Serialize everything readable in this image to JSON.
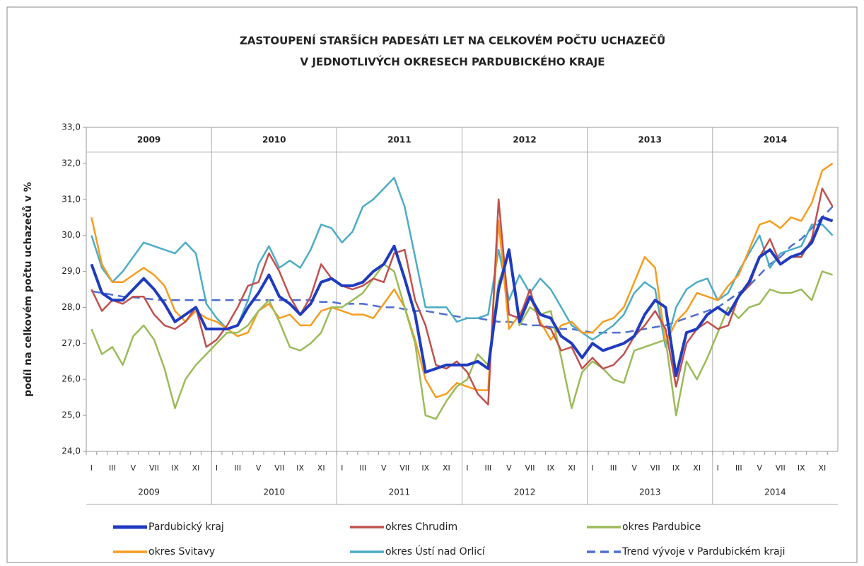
{
  "chart_data": {
    "type": "line",
    "title": [
      "ZASTOUPENÍ  STARŠÍCH PADESÁTI LET NA  CELKOVÉM  POČTU  UCHAZEČŮ",
      "V JEDNOTLIVÝCH  OKRESECH  PARDUBICKÉHO  KRAJE"
    ],
    "y_label": "podíl na celkovém počtu uchazečů v %",
    "years": [
      "2009",
      "2010",
      "2011",
      "2012",
      "2013",
      "2014"
    ],
    "categories": [
      "I",
      null,
      "III",
      null,
      "V",
      null,
      "VII",
      null,
      "IX",
      null,
      "XI",
      null,
      "I",
      null,
      "III",
      null,
      "V",
      null,
      "VII",
      null,
      "IX",
      null,
      "XI",
      null,
      "I",
      null,
      "III",
      null,
      "V",
      null,
      "VII",
      null,
      "IX",
      null,
      "XI",
      null,
      "I",
      null,
      "III",
      null,
      "V",
      null,
      "VII",
      null,
      "IX",
      null,
      "XI",
      null,
      "I",
      null,
      "III",
      null,
      "V",
      null,
      "VII",
      null,
      "IX",
      null,
      "XI",
      null,
      "I",
      null,
      "III",
      null,
      "V",
      null,
      "VII",
      null,
      "IX",
      null,
      "XI",
      null
    ],
    "ylim": [
      24,
      33
    ],
    "yticks": [
      {
        "value": 24,
        "label": "24,0"
      },
      {
        "value": 25,
        "label": "25,0"
      },
      {
        "value": 26,
        "label": "26,0"
      },
      {
        "value": 27,
        "label": "27,0"
      },
      {
        "value": 28,
        "label": "28,0"
      },
      {
        "value": 29,
        "label": "29,0"
      },
      {
        "value": 30,
        "label": "30,0"
      },
      {
        "value": 31,
        "label": "31,0"
      },
      {
        "value": 32,
        "label": "32,0"
      },
      {
        "value": 33,
        "label": "33,0"
      }
    ],
    "grid": false,
    "legend": "bottom",
    "series": [
      {
        "name": "Pardubický kraj",
        "color": "#1f3bbf",
        "width": 4,
        "dash": false,
        "values": [
          29.2,
          28.4,
          28.2,
          28.2,
          28.5,
          28.8,
          28.5,
          28.1,
          27.6,
          27.8,
          28.0,
          27.4,
          27.4,
          27.4,
          27.5,
          28.0,
          28.4,
          28.9,
          28.3,
          28.1,
          27.8,
          28.1,
          28.7,
          28.8,
          28.6,
          28.6,
          28.7,
          29.0,
          29.2,
          29.7,
          28.8,
          27.8,
          26.2,
          26.3,
          26.4,
          26.4,
          26.4,
          26.5,
          26.3,
          28.5,
          29.6,
          27.6,
          28.3,
          27.8,
          27.7,
          27.2,
          27.0,
          26.6,
          27.0,
          26.8,
          26.9,
          27.0,
          27.2,
          27.8,
          28.2,
          28.0,
          26.1,
          27.3,
          27.4,
          27.8,
          28.0,
          27.8,
          28.3,
          28.7,
          29.4,
          29.6,
          29.2,
          29.4,
          29.5,
          29.8,
          30.5,
          30.4
        ]
      },
      {
        "name": "okres Chrudim",
        "color": "#c0504d",
        "width": 2.5,
        "dash": false,
        "values": [
          28.5,
          27.9,
          28.2,
          28.1,
          28.3,
          28.3,
          27.8,
          27.5,
          27.4,
          27.6,
          28.0,
          26.9,
          27.1,
          27.5,
          28.0,
          28.6,
          28.7,
          29.5,
          29.0,
          28.3,
          27.8,
          28.3,
          29.2,
          28.8,
          28.6,
          28.5,
          28.6,
          28.8,
          28.7,
          29.5,
          29.6,
          28.2,
          27.5,
          26.4,
          26.3,
          26.5,
          26.2,
          25.6,
          25.3,
          31.0,
          27.8,
          27.7,
          28.5,
          27.5,
          27.4,
          26.8,
          26.9,
          26.3,
          26.6,
          26.3,
          26.4,
          26.7,
          27.2,
          27.5,
          27.9,
          27.4,
          25.8,
          27.0,
          27.4,
          27.6,
          27.4,
          27.5,
          28.3,
          28.6,
          29.4,
          29.9,
          29.2,
          29.4,
          29.4,
          29.9,
          31.3,
          30.8
        ]
      },
      {
        "name": "okres Pardubice",
        "color": "#9bbb59",
        "width": 2.5,
        "dash": false,
        "values": [
          27.4,
          26.7,
          26.9,
          26.4,
          27.2,
          27.5,
          27.1,
          26.3,
          25.2,
          26.0,
          26.4,
          26.7,
          27.0,
          27.3,
          27.3,
          27.5,
          27.9,
          28.2,
          27.6,
          26.9,
          26.8,
          27.0,
          27.3,
          28.0,
          28.0,
          28.2,
          28.4,
          28.8,
          29.2,
          29.0,
          28.0,
          27.0,
          25.0,
          24.9,
          25.4,
          25.8,
          26.0,
          26.7,
          26.4,
          28.7,
          29.5,
          27.5,
          28.0,
          27.8,
          27.9,
          26.6,
          25.2,
          26.2,
          26.5,
          26.3,
          26.0,
          25.9,
          26.8,
          26.9,
          27.0,
          27.1,
          25.0,
          26.5,
          26.0,
          26.6,
          27.3,
          28.0,
          27.7,
          28.0,
          28.1,
          28.5,
          28.4,
          28.4,
          28.5,
          28.2,
          29.0,
          28.9
        ]
      },
      {
        "name": "okres Svitavy",
        "color": "#f79c1e",
        "width": 2.5,
        "dash": false,
        "values": [
          30.5,
          29.2,
          28.7,
          28.7,
          28.9,
          29.1,
          28.9,
          28.6,
          27.9,
          27.6,
          27.9,
          27.7,
          27.6,
          27.4,
          27.2,
          27.3,
          27.9,
          28.1,
          27.7,
          27.8,
          27.5,
          27.5,
          27.9,
          28.0,
          27.9,
          27.8,
          27.8,
          27.7,
          28.1,
          28.5,
          28.0,
          27.1,
          26.0,
          25.5,
          25.6,
          25.9,
          25.8,
          25.7,
          25.7,
          30.4,
          27.4,
          27.8,
          28.3,
          27.6,
          27.1,
          27.5,
          27.6,
          27.3,
          27.3,
          27.6,
          27.7,
          28.0,
          28.7,
          29.4,
          29.1,
          27.0,
          27.6,
          27.9,
          28.4,
          28.3,
          28.2,
          28.6,
          28.9,
          29.6,
          30.3,
          30.4,
          30.2,
          30.5,
          30.4,
          30.9,
          31.8,
          32.0
        ]
      },
      {
        "name": "okres Ústí nad Orlicí",
        "color": "#4bacc6",
        "width": 2.5,
        "dash": false,
        "values": [
          30.0,
          29.1,
          28.7,
          29.0,
          29.4,
          29.8,
          29.7,
          29.6,
          29.5,
          29.8,
          29.5,
          28.1,
          27.7,
          27.4,
          27.5,
          28.2,
          29.2,
          29.7,
          29.1,
          29.3,
          29.1,
          29.6,
          30.3,
          30.2,
          29.8,
          30.1,
          30.8,
          31.0,
          31.3,
          31.6,
          30.8,
          29.4,
          28.0,
          28.0,
          28.0,
          27.6,
          27.7,
          27.7,
          27.8,
          29.6,
          28.2,
          28.9,
          28.4,
          28.8,
          28.5,
          28.0,
          27.5,
          27.3,
          27.1,
          27.3,
          27.5,
          27.8,
          28.4,
          28.7,
          28.5,
          26.9,
          28.0,
          28.5,
          28.7,
          28.8,
          28.2,
          28.4,
          29.0,
          29.5,
          30.0,
          29.1,
          29.5,
          29.6,
          29.7,
          30.3,
          30.3,
          30.0
        ]
      },
      {
        "name": "Trend vývoje v Pardubickém kraji",
        "color": "#4f6fd0",
        "width": 2.5,
        "dash": true,
        "values": [
          28.45,
          28.4,
          28.35,
          28.3,
          28.28,
          28.25,
          28.22,
          28.2,
          28.2,
          28.2,
          28.2,
          28.2,
          28.2,
          28.2,
          28.2,
          28.2,
          28.2,
          28.2,
          28.2,
          28.2,
          28.2,
          28.2,
          28.15,
          28.15,
          28.1,
          28.1,
          28.1,
          28.05,
          28.0,
          28.0,
          27.95,
          27.9,
          27.9,
          27.85,
          27.8,
          27.75,
          27.7,
          27.7,
          27.65,
          27.6,
          27.6,
          27.55,
          27.5,
          27.5,
          27.45,
          27.4,
          27.4,
          27.35,
          27.3,
          27.3,
          27.3,
          27.3,
          27.35,
          27.4,
          27.45,
          27.5,
          27.6,
          27.7,
          27.8,
          27.9,
          28.0,
          28.2,
          28.4,
          28.6,
          28.9,
          29.2,
          29.4,
          29.7,
          29.9,
          30.2,
          30.5,
          30.8
        ]
      }
    ]
  }
}
